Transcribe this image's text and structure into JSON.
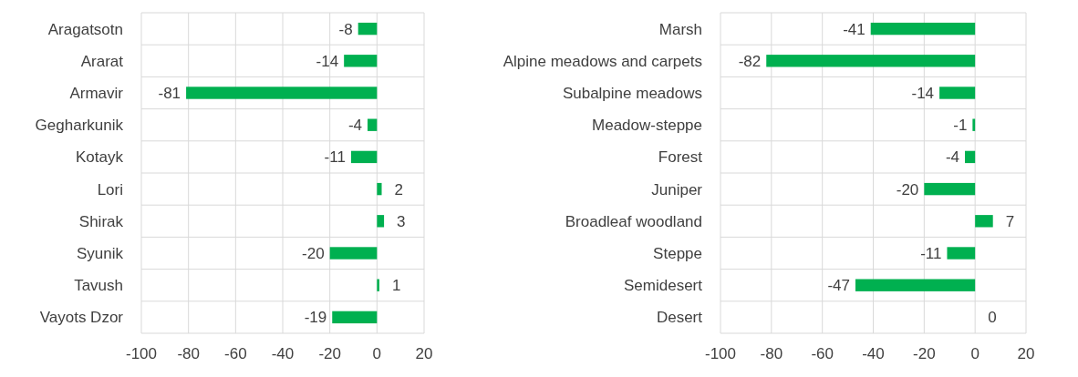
{
  "chart_data": [
    {
      "type": "bar",
      "orientation": "horizontal",
      "categories": [
        "Aragatsotn",
        "Ararat",
        "Armavir",
        "Gegharkunik",
        "Kotayk",
        "Lori",
        "Shirak",
        "Syunik",
        "Tavush",
        "Vayots Dzor"
      ],
      "values": [
        -8,
        -14,
        -81,
        -4,
        -11,
        2,
        3,
        -20,
        1,
        -19
      ],
      "color": "#00b050",
      "xlim": [
        -100,
        20
      ],
      "xticks": [
        -100,
        -80,
        -60,
        -40,
        -20,
        0,
        20
      ],
      "grid": true,
      "data_labels": true
    },
    {
      "type": "bar",
      "orientation": "horizontal",
      "categories": [
        "Marsh",
        "Alpine meadows and carpets",
        "Subalpine meadows",
        "Meadow-steppe",
        "Forest",
        "Juniper",
        "Broadleaf woodland",
        "Steppe",
        "Semidesert",
        "Desert"
      ],
      "values": [
        -41,
        -82,
        -14,
        -1,
        -4,
        -20,
        7,
        -11,
        -47,
        0
      ],
      "color": "#00b050",
      "xlim": [
        -100,
        20
      ],
      "xticks": [
        -100,
        -80,
        -60,
        -40,
        -20,
        0,
        20
      ],
      "grid": true,
      "data_labels": true
    }
  ]
}
